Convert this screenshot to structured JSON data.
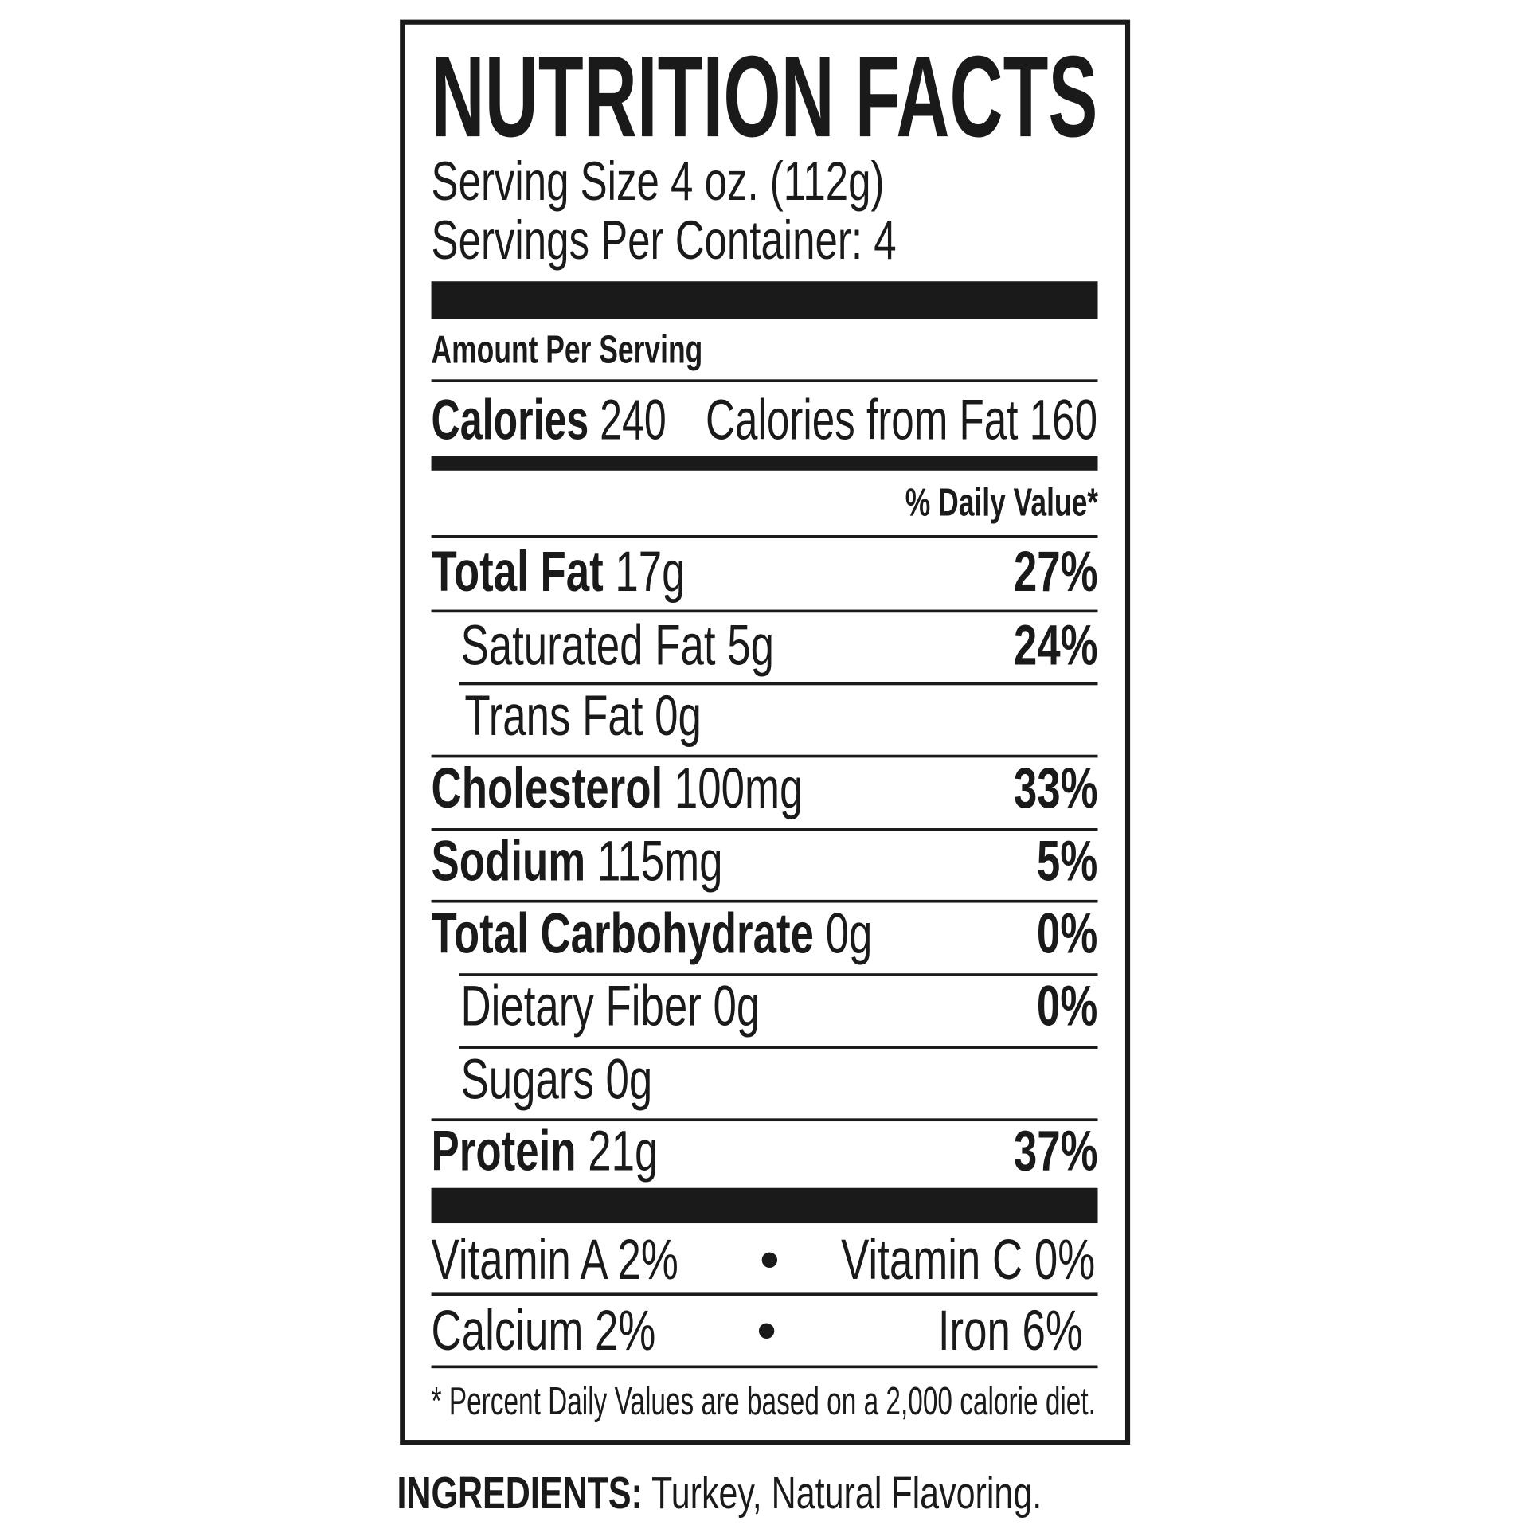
{
  "label": {
    "title": "NUTRITION FACTS",
    "serving_size": "Serving Size 4 oz. (112g)",
    "servings_per_container": "Servings Per Container: 4",
    "amount_per_serving": "Amount Per Serving",
    "calories_label": "Calories",
    "calories_value": "240",
    "calories_from_fat": "Calories from Fat 160",
    "daily_value_header": "% Daily Value*",
    "nutrients": [
      {
        "name": "Total Fat",
        "amount": "17g",
        "dv": "27%"
      },
      {
        "name": "Saturated Fat",
        "amount": "5g",
        "dv": "24%"
      },
      {
        "name": "Trans Fat",
        "amount": "0g",
        "dv": ""
      },
      {
        "name": "Cholesterol",
        "amount": "100mg",
        "dv": "33%"
      },
      {
        "name": "Sodium",
        "amount": "115mg",
        "dv": "5%"
      },
      {
        "name": "Total Carbohydrate",
        "amount": "0g",
        "dv": "0%"
      },
      {
        "name": "Dietary Fiber",
        "amount": "0g",
        "dv": "0%"
      },
      {
        "name": "Sugars",
        "amount": "0g",
        "dv": ""
      },
      {
        "name": "Protein",
        "amount": "21g",
        "dv": "37%"
      }
    ],
    "vitamins": [
      {
        "left": "Vitamin A 2%",
        "right": "Vitamin C 0%"
      },
      {
        "left": "Calcium 2%",
        "right": "Iron 6%"
      }
    ],
    "bullet": "•",
    "footnote": "* Percent Daily Values are based on a 2,000 calorie diet."
  },
  "ingredients": {
    "label": "INGREDIENTS:",
    "text": " Turkey, Natural Flavoring."
  }
}
